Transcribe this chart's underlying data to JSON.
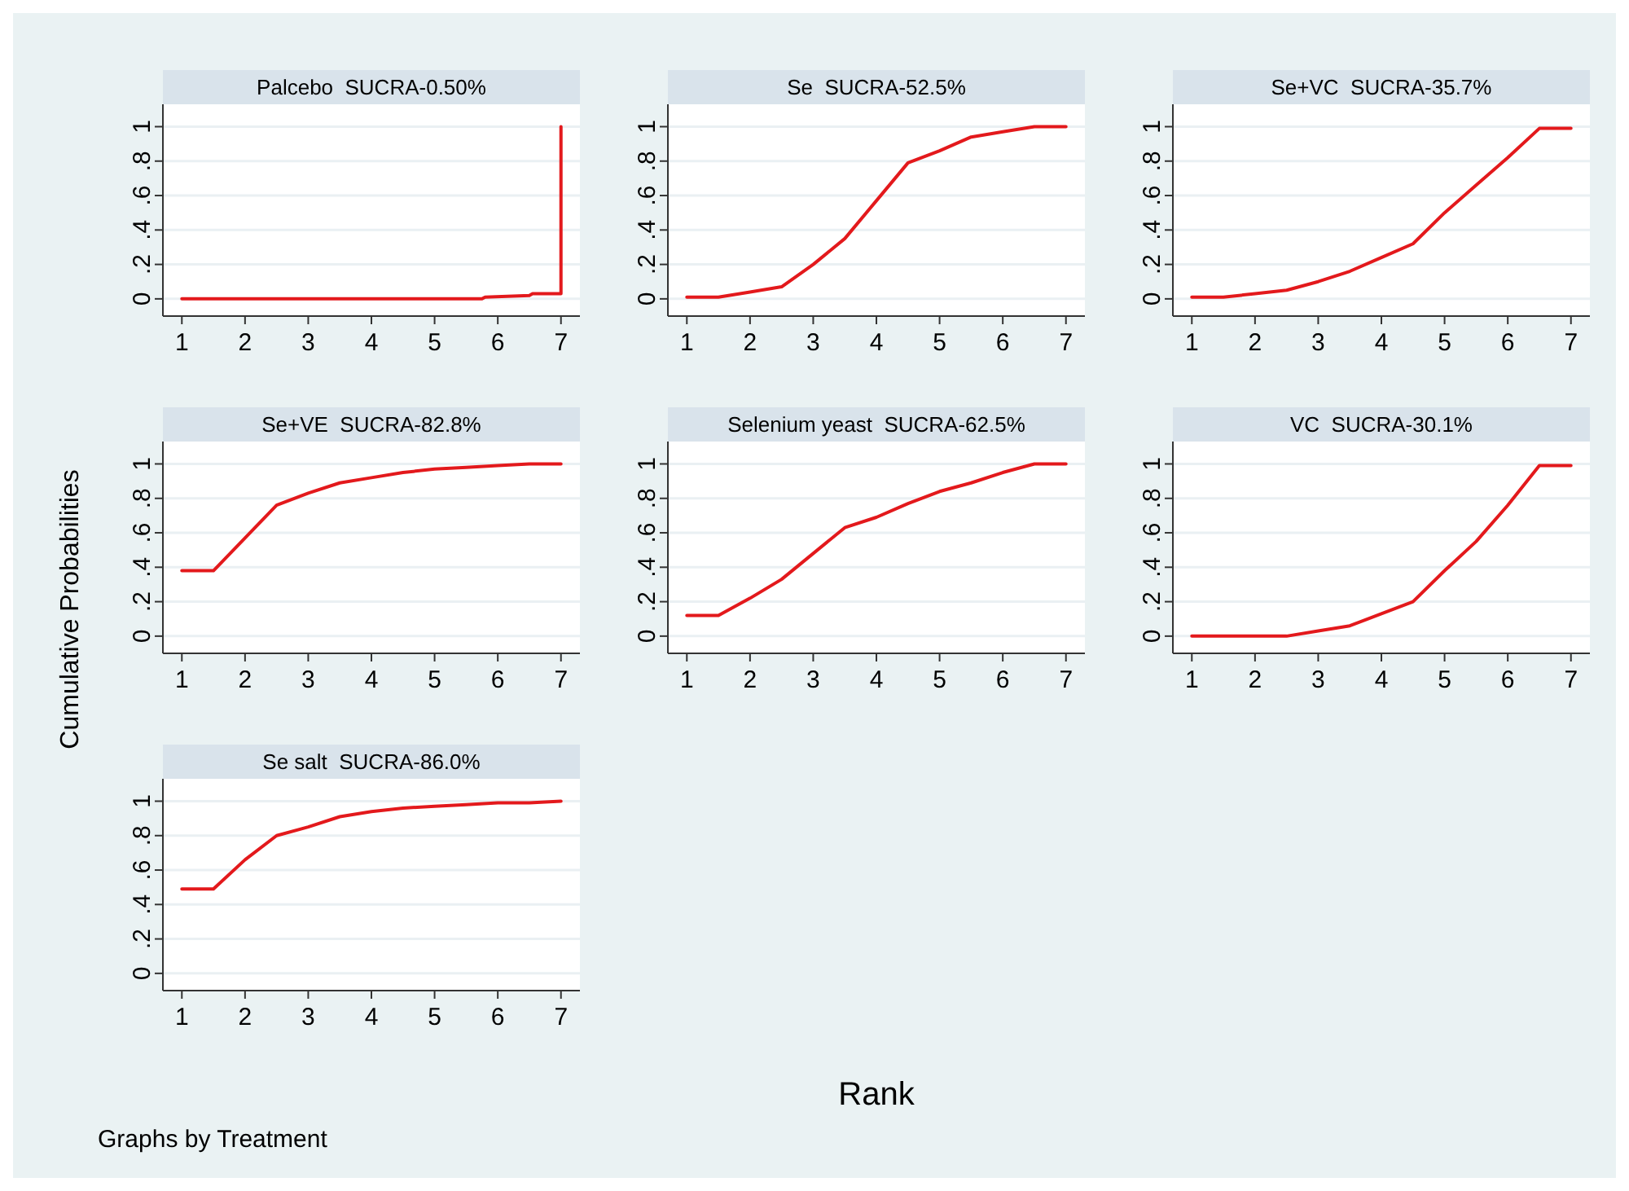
{
  "chart_data": [
    {
      "type": "line",
      "title": "Palcebo  SUCRA-0.50%",
      "xlim": [
        0.7,
        7.3
      ],
      "xticks": [
        1,
        2,
        3,
        4,
        5,
        6,
        7
      ],
      "ylim": [
        -0.1,
        1.13
      ],
      "yticks": [
        {
          "value": 0,
          "label": "0"
        },
        {
          "value": 0.2,
          "label": ".2"
        },
        {
          "value": 0.4,
          "label": ".4"
        },
        {
          "value": 0.6,
          "label": ".6"
        },
        {
          "value": 0.8,
          "label": ".8"
        },
        {
          "value": 1,
          "label": "1"
        }
      ],
      "grid": "y",
      "series": [
        {
          "color": "#e3191c",
          "x": [
            1,
            5.75,
            5.8,
            6.5,
            6.55,
            7,
            7
          ],
          "values": [
            0,
            0,
            0.01,
            0.02,
            0.03,
            0.03,
            1
          ]
        }
      ]
    },
    {
      "type": "line",
      "title": "Se  SUCRA-52.5%",
      "xlim": [
        0.7,
        7.3
      ],
      "xticks": [
        1,
        2,
        3,
        4,
        5,
        6,
        7
      ],
      "ylim": [
        -0.1,
        1.13
      ],
      "yticks": [
        {
          "value": 0,
          "label": "0"
        },
        {
          "value": 0.2,
          "label": ".2"
        },
        {
          "value": 0.4,
          "label": ".4"
        },
        {
          "value": 0.6,
          "label": ".6"
        },
        {
          "value": 0.8,
          "label": ".8"
        },
        {
          "value": 1,
          "label": "1"
        }
      ],
      "grid": "y",
      "series": [
        {
          "color": "#e3191c",
          "x": [
            1,
            1.5,
            2,
            2.5,
            3,
            3.5,
            4,
            4.5,
            5,
            5.5,
            6,
            6.5,
            7
          ],
          "values": [
            0.01,
            0.01,
            0.04,
            0.07,
            0.2,
            0.35,
            0.57,
            0.79,
            0.86,
            0.94,
            0.97,
            1,
            1
          ]
        }
      ]
    },
    {
      "type": "line",
      "title": "Se+VC  SUCRA-35.7%",
      "xlim": [
        0.7,
        7.3
      ],
      "xticks": [
        1,
        2,
        3,
        4,
        5,
        6,
        7
      ],
      "ylim": [
        -0.1,
        1.13
      ],
      "yticks": [
        {
          "value": 0,
          "label": "0"
        },
        {
          "value": 0.2,
          "label": ".2"
        },
        {
          "value": 0.4,
          "label": ".4"
        },
        {
          "value": 0.6,
          "label": ".6"
        },
        {
          "value": 0.8,
          "label": ".8"
        },
        {
          "value": 1,
          "label": "1"
        }
      ],
      "grid": "y",
      "series": [
        {
          "color": "#e3191c",
          "x": [
            1,
            1.5,
            2,
            2.5,
            3,
            3.5,
            4,
            4.5,
            5,
            5.5,
            6,
            6.5,
            7
          ],
          "values": [
            0.01,
            0.01,
            0.03,
            0.05,
            0.1,
            0.16,
            0.24,
            0.32,
            0.5,
            0.66,
            0.82,
            0.99,
            0.99
          ]
        }
      ]
    },
    {
      "type": "line",
      "title": "Se+VE  SUCRA-82.8%",
      "ylabel": "Cumulative Probabilities",
      "xlim": [
        0.7,
        7.3
      ],
      "xticks": [
        1,
        2,
        3,
        4,
        5,
        6,
        7
      ],
      "ylim": [
        -0.1,
        1.13
      ],
      "yticks": [
        {
          "value": 0,
          "label": "0"
        },
        {
          "value": 0.2,
          "label": ".2"
        },
        {
          "value": 0.4,
          "label": ".4"
        },
        {
          "value": 0.6,
          "label": ".6"
        },
        {
          "value": 0.8,
          "label": ".8"
        },
        {
          "value": 1,
          "label": "1"
        }
      ],
      "grid": "y",
      "series": [
        {
          "color": "#e3191c",
          "x": [
            1,
            1.5,
            2,
            2.5,
            3,
            3.5,
            4,
            4.5,
            5,
            5.5,
            6,
            6.5,
            7
          ],
          "values": [
            0.38,
            0.38,
            0.57,
            0.76,
            0.83,
            0.89,
            0.92,
            0.95,
            0.97,
            0.98,
            0.99,
            1,
            1
          ]
        }
      ]
    },
    {
      "type": "line",
      "title": "Selenium yeast  SUCRA-62.5%",
      "xlabel": "Rank",
      "xlim": [
        0.7,
        7.3
      ],
      "xticks": [
        1,
        2,
        3,
        4,
        5,
        6,
        7
      ],
      "ylim": [
        -0.1,
        1.13
      ],
      "yticks": [
        {
          "value": 0,
          "label": "0"
        },
        {
          "value": 0.2,
          "label": ".2"
        },
        {
          "value": 0.4,
          "label": ".4"
        },
        {
          "value": 0.6,
          "label": ".6"
        },
        {
          "value": 0.8,
          "label": ".8"
        },
        {
          "value": 1,
          "label": "1"
        }
      ],
      "grid": "y",
      "series": [
        {
          "color": "#e3191c",
          "x": [
            1,
            1.5,
            2,
            2.5,
            3,
            3.5,
            4,
            4.5,
            5,
            5.5,
            6,
            6.5,
            7
          ],
          "values": [
            0.12,
            0.12,
            0.22,
            0.33,
            0.48,
            0.63,
            0.69,
            0.77,
            0.84,
            0.89,
            0.95,
            1,
            1
          ]
        }
      ]
    },
    {
      "type": "line",
      "title": "VC  SUCRA-30.1%",
      "xlim": [
        0.7,
        7.3
      ],
      "xticks": [
        1,
        2,
        3,
        4,
        5,
        6,
        7
      ],
      "ylim": [
        -0.1,
        1.13
      ],
      "yticks": [
        {
          "value": 0,
          "label": "0"
        },
        {
          "value": 0.2,
          "label": ".2"
        },
        {
          "value": 0.4,
          "label": ".4"
        },
        {
          "value": 0.6,
          "label": ".6"
        },
        {
          "value": 0.8,
          "label": ".8"
        },
        {
          "value": 1,
          "label": "1"
        }
      ],
      "grid": "y",
      "series": [
        {
          "color": "#e3191c",
          "x": [
            1,
            1.5,
            2,
            2.5,
            3,
            3.5,
            4,
            4.5,
            5,
            5.5,
            6,
            6.5,
            7
          ],
          "values": [
            0,
            0,
            0,
            0,
            0.03,
            0.06,
            0.13,
            0.2,
            0.38,
            0.55,
            0.76,
            0.99,
            0.99
          ]
        }
      ]
    },
    {
      "type": "line",
      "title": "Se salt  SUCRA-86.0%",
      "annotations": [
        "Graphs by Treatment"
      ],
      "xlim": [
        0.7,
        7.3
      ],
      "xticks": [
        1,
        2,
        3,
        4,
        5,
        6,
        7
      ],
      "ylim": [
        -0.1,
        1.13
      ],
      "yticks": [
        {
          "value": 0,
          "label": "0"
        },
        {
          "value": 0.2,
          "label": ".2"
        },
        {
          "value": 0.4,
          "label": ".4"
        },
        {
          "value": 0.6,
          "label": ".6"
        },
        {
          "value": 0.8,
          "label": ".8"
        },
        {
          "value": 1,
          "label": "1"
        }
      ],
      "grid": "y",
      "series": [
        {
          "color": "#e3191c",
          "x": [
            1,
            1.5,
            2,
            2.5,
            3,
            3.5,
            4,
            4.5,
            5,
            5.5,
            6,
            6.5,
            7
          ],
          "values": [
            0.49,
            0.49,
            0.66,
            0.8,
            0.85,
            0.91,
            0.94,
            0.96,
            0.97,
            0.98,
            0.99,
            0.99,
            1
          ]
        }
      ]
    }
  ]
}
